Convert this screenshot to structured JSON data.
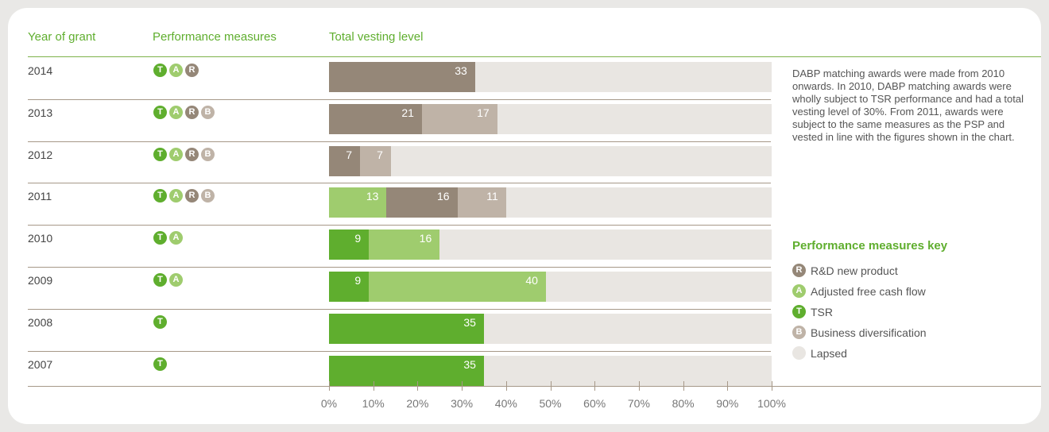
{
  "headers": {
    "year": "Year of grant",
    "measures": "Performance measures",
    "vesting": "Total vesting level"
  },
  "colors": {
    "T": "#5fae2e",
    "A": "#9fcc6e",
    "R": "#958778",
    "B": "#bfb3a7",
    "lapsed": "#e9e6e2"
  },
  "chart_data": {
    "type": "bar",
    "orientation": "horizontal",
    "stacked": true,
    "xlim": [
      0,
      100
    ],
    "ticks": [
      "0%",
      "10%",
      "20%",
      "30%",
      "40%",
      "50%",
      "60%",
      "70%",
      "80%",
      "90%",
      "100%"
    ],
    "rows": [
      {
        "year": "2014",
        "measures": [
          "T",
          "A",
          "R"
        ],
        "segments": [
          {
            "measure": "R",
            "value": 33
          }
        ]
      },
      {
        "year": "2013",
        "measures": [
          "T",
          "A",
          "R",
          "B"
        ],
        "segments": [
          {
            "measure": "R",
            "value": 21
          },
          {
            "measure": "B",
            "value": 17
          }
        ]
      },
      {
        "year": "2012",
        "measures": [
          "T",
          "A",
          "R",
          "B"
        ],
        "segments": [
          {
            "measure": "R",
            "value": 7
          },
          {
            "measure": "B",
            "value": 7
          }
        ]
      },
      {
        "year": "2011",
        "measures": [
          "T",
          "A",
          "R",
          "B"
        ],
        "segments": [
          {
            "measure": "A",
            "value": 13
          },
          {
            "measure": "R",
            "value": 16
          },
          {
            "measure": "B",
            "value": 11
          }
        ]
      },
      {
        "year": "2010",
        "measures": [
          "T",
          "A"
        ],
        "segments": [
          {
            "measure": "T",
            "value": 9
          },
          {
            "measure": "A",
            "value": 16
          }
        ]
      },
      {
        "year": "2009",
        "measures": [
          "T",
          "A"
        ],
        "segments": [
          {
            "measure": "T",
            "value": 9
          },
          {
            "measure": "A",
            "value": 40
          }
        ]
      },
      {
        "year": "2008",
        "measures": [
          "T"
        ],
        "segments": [
          {
            "measure": "T",
            "value": 35
          }
        ]
      },
      {
        "year": "2007",
        "measures": [
          "T"
        ],
        "segments": [
          {
            "measure": "T",
            "value": 35
          }
        ]
      }
    ]
  },
  "note": "DABP matching awards were made from 2010 onwards. In 2010, DABP matching awards were wholly subject to TSR performance and had a total vesting level of 30%. From 2011, awards were subject to the same measures as the PSP and vested in line with the figures shown in the chart.",
  "key": {
    "title": "Performance measures key",
    "items": [
      {
        "code": "R",
        "label": "R&D new product"
      },
      {
        "code": "A",
        "label": "Adjusted free cash flow"
      },
      {
        "code": "T",
        "label": "TSR"
      },
      {
        "code": "B",
        "label": "Business diversification"
      },
      {
        "code": "",
        "label": "Lapsed"
      }
    ]
  }
}
